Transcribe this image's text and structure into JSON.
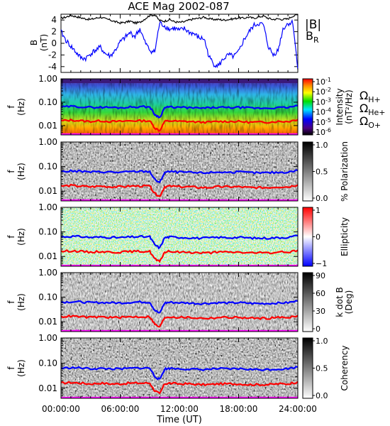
{
  "chart_data": {
    "title": "ACE Mag 2002-087",
    "type": "multi-panel spectrogram",
    "x_axis": {
      "label": "Time (UT)",
      "range_hours": [
        0,
        24
      ],
      "ticks": [
        "00:00:00",
        "06:00:00",
        "12:00:00",
        "18:00:00",
        "24:00:00"
      ]
    },
    "freq_ticks": [
      "1.00",
      "0.10",
      "0.01"
    ],
    "freq_range_hz": [
      0.004,
      1.0
    ],
    "freq_axis_log": true,
    "freq_axis_label": [
      "f",
      "(Hz)"
    ],
    "gyro_labels": {
      "h": "Ω",
      "h_sub": "H+",
      "he": "Ω",
      "he_sub": "He+",
      "o": "Ω",
      "o_sub": "O+"
    },
    "gyro_colors": {
      "h": "#0000ff",
      "he": "#ff0000",
      "o": "#ff00ff"
    },
    "gyro_hz": {
      "t": [
        0,
        1,
        2,
        3,
        4,
        5,
        6,
        7,
        8,
        9,
        9.5,
        10,
        10.5,
        11,
        12,
        13,
        14,
        15,
        16,
        17,
        18,
        19,
        20,
        21,
        22,
        23,
        24
      ],
      "h": [
        0.062,
        0.066,
        0.064,
        0.06,
        0.061,
        0.06,
        0.058,
        0.062,
        0.064,
        0.063,
        0.03,
        0.022,
        0.058,
        0.062,
        0.06,
        0.058,
        0.055,
        0.057,
        0.06,
        0.058,
        0.06,
        0.057,
        0.055,
        0.056,
        0.058,
        0.06,
        0.07
      ],
      "he": [
        0.016,
        0.017,
        0.016,
        0.015,
        0.016,
        0.015,
        0.015,
        0.016,
        0.016,
        0.016,
        0.008,
        0.006,
        0.015,
        0.016,
        0.015,
        0.015,
        0.014,
        0.014,
        0.015,
        0.015,
        0.015,
        0.014,
        0.014,
        0.014,
        0.015,
        0.015,
        0.018
      ],
      "o": [
        0.004,
        0.0042,
        0.0041,
        0.0039,
        0.004,
        0.0039,
        0.0038,
        0.004,
        0.0041,
        0.004,
        0.003,
        0.0028,
        0.0038,
        0.004,
        0.0039,
        0.0038,
        0.0036,
        0.0037,
        0.0039,
        0.0038,
        0.0039,
        0.0037,
        0.0036,
        0.0037,
        0.0038,
        0.0039,
        0.0044
      ]
    },
    "field_panel": {
      "ylabel": [
        "B",
        "(nT)"
      ],
      "ylim": [
        -5,
        5
      ],
      "yticks": [
        "4",
        "2",
        "0",
        "-2",
        "-4"
      ],
      "legend_b": "|B|",
      "legend_br": "B",
      "legend_br_sub": "R",
      "color_b": "#000000",
      "color_br": "#0000ff",
      "t": [
        0,
        0.5,
        1,
        1.5,
        2,
        2.5,
        3,
        3.5,
        4,
        4.5,
        5,
        5.5,
        6,
        6.5,
        7,
        7.5,
        8,
        8.5,
        9,
        9.5,
        10,
        10.5,
        11,
        11.5,
        12,
        12.5,
        13,
        13.5,
        14,
        14.5,
        15,
        15.5,
        16,
        16.5,
        17,
        17.5,
        18,
        18.5,
        19,
        19.5,
        20,
        20.5,
        21,
        21.5,
        22,
        22.5,
        23,
        23.5,
        24
      ],
      "b": [
        4.3,
        4.5,
        4.8,
        4.6,
        4.4,
        4.2,
        4.1,
        4.3,
        4.5,
        4.2,
        4.0,
        3.7,
        3.5,
        3.6,
        3.8,
        3.5,
        3.6,
        4.2,
        4.8,
        4.9,
        3.9,
        3.8,
        4.1,
        3.7,
        3.6,
        3.7,
        4.0,
        4.2,
        4.3,
        4.5,
        4.2,
        4.1,
        4.1,
        4.0,
        4.1,
        4.2,
        4.4,
        4.3,
        4.5,
        4.3,
        4.5,
        4.7,
        4.3,
        4.1,
        4.2,
        4.1,
        4.2,
        4.7,
        4.9
      ],
      "br": [
        2.0,
        0.5,
        -0.5,
        -1.5,
        -2.5,
        -2.6,
        -1.8,
        -1.2,
        -0.7,
        -1.8,
        -2.2,
        -1.2,
        0.2,
        1.0,
        1.8,
        1.2,
        2.5,
        0.2,
        -1.2,
        -1.5,
        3.5,
        3.0,
        2.4,
        2.6,
        2.2,
        2.5,
        1.9,
        1.6,
        0.9,
        0.8,
        -2.3,
        -3.6,
        -3.8,
        -2.6,
        -2.0,
        -2.3,
        -1.5,
        0.5,
        1.8,
        3.0,
        3.4,
        3.2,
        -0.5,
        -2.0,
        -1.2,
        2.5,
        3.4,
        3.6,
        -4.5
      ]
    },
    "panels": [
      {
        "id": "intensity",
        "colorbar_label": [
          "Intensity",
          "(nT²/Hz)"
        ],
        "colorbar_type": "rainbow",
        "colorbar_ticks": [
          {
            "base": "10",
            "exp": "-1"
          },
          {
            "base": "10",
            "exp": "-2"
          },
          {
            "base": "10",
            "exp": "-3"
          },
          {
            "base": "10",
            "exp": "-4"
          },
          {
            "base": "10",
            "exp": "-5"
          },
          {
            "base": "10",
            "exp": "-6"
          }
        ]
      },
      {
        "id": "polarization",
        "colorbar_label": [
          "% Polarization"
        ],
        "colorbar_type": "gray",
        "colorbar_ticks": [
          "1.0",
          "0.5",
          "0.0"
        ]
      },
      {
        "id": "ellipticity",
        "colorbar_label": [
          "Ellipticity"
        ],
        "colorbar_type": "bwr",
        "colorbar_ticks": [
          "1",
          "0",
          "−1"
        ]
      },
      {
        "id": "kdotb",
        "colorbar_label": [
          "k dot B",
          "(Deg)"
        ],
        "colorbar_type": "gray",
        "colorbar_ticks": [
          "90",
          "60",
          "30",
          "0"
        ]
      },
      {
        "id": "coherency",
        "colorbar_label": [
          "Coherency"
        ],
        "colorbar_type": "gray",
        "colorbar_ticks": [
          "1.0",
          "0.5",
          "0.0"
        ]
      }
    ]
  }
}
